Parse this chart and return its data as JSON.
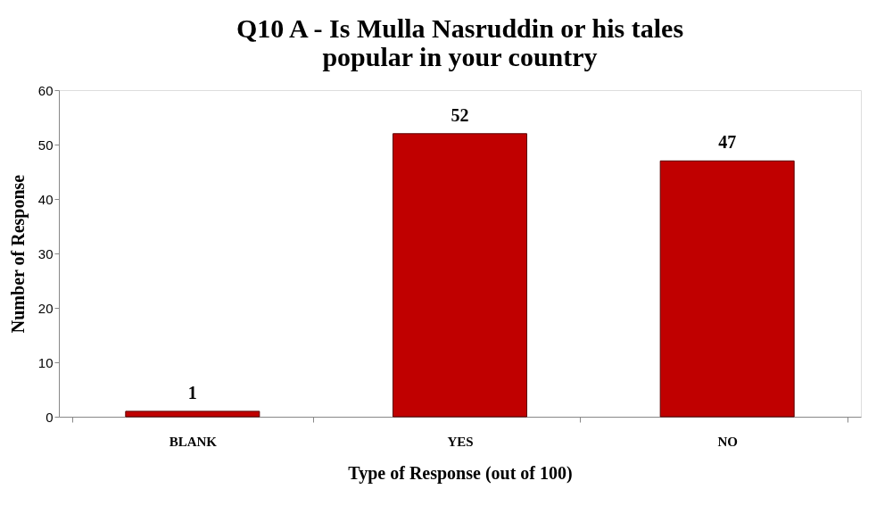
{
  "chart_data": {
    "type": "bar",
    "title": "Q10 A - Is Mulla Nasruddin or his tales popular in your country",
    "xlabel": "Type of Response (out of 100)",
    "ylabel": "Number of Response",
    "categories": [
      "BLANK",
      "YES",
      "NO"
    ],
    "values": [
      1,
      52,
      47
    ],
    "color": "#c00000",
    "ylim": [
      0,
      60
    ],
    "yticks": [
      0,
      10,
      20,
      30,
      40,
      50,
      60
    ],
    "grid": false,
    "data_labels": true
  }
}
